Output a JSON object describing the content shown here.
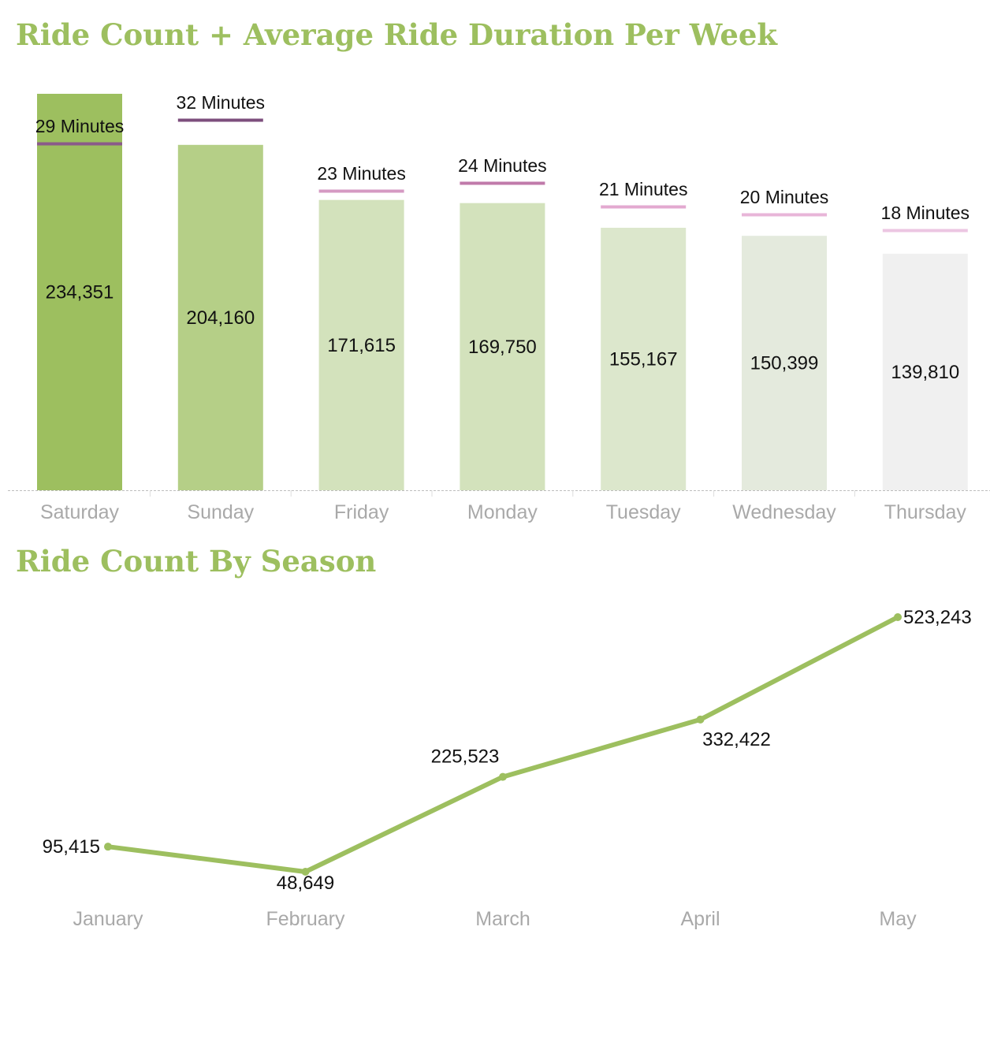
{
  "chart_data": [
    {
      "type": "bar",
      "title": "Ride Count + Average Ride Duration Per Week",
      "categories": [
        "Saturday",
        "Sunday",
        "Friday",
        "Monday",
        "Tuesday",
        "Wednesday",
        "Thursday"
      ],
      "series": [
        {
          "values": [
            234351,
            204160,
            171615,
            169750,
            155167,
            150399,
            139810
          ],
          "labels": [
            "234,351",
            "204,160",
            "171,615",
            "169,750",
            "155,167",
            "150,399",
            "139,810"
          ]
        },
        {
          "values": [
            29,
            32,
            23,
            24,
            21,
            20,
            18
          ],
          "labels": [
            "29 Minutes",
            "32 Minutes",
            "23 Minutes",
            "24 Minutes",
            "21 Minutes",
            "20 Minutes",
            "18 Minutes"
          ]
        }
      ],
      "ylim": [
        0,
        234351
      ],
      "grid": false,
      "bar_colors": [
        "#9dbf5f",
        "#b5cf87",
        "#d3e2bc",
        "#d3e2bc",
        "#dce7cc",
        "#e4eadd",
        "#f0f0f0"
      ],
      "marker_colors": [
        "#8a5a8a",
        "#7d4e7d",
        "#d59ac3",
        "#c07aaa",
        "#e3a9d0",
        "#e8b5d8",
        "#ecc6e2"
      ]
    },
    {
      "type": "line",
      "title": "Ride Count By Season",
      "categories": [
        "January",
        "February",
        "March",
        "April",
        "May"
      ],
      "series": [
        {
          "values": [
            95415,
            48649,
            225523,
            332422,
            523243
          ],
          "labels": [
            "95,415",
            "48,649",
            "225,523",
            "332,422",
            "523,243"
          ]
        }
      ],
      "grid": false,
      "line_color": "#9dbf5f"
    }
  ]
}
